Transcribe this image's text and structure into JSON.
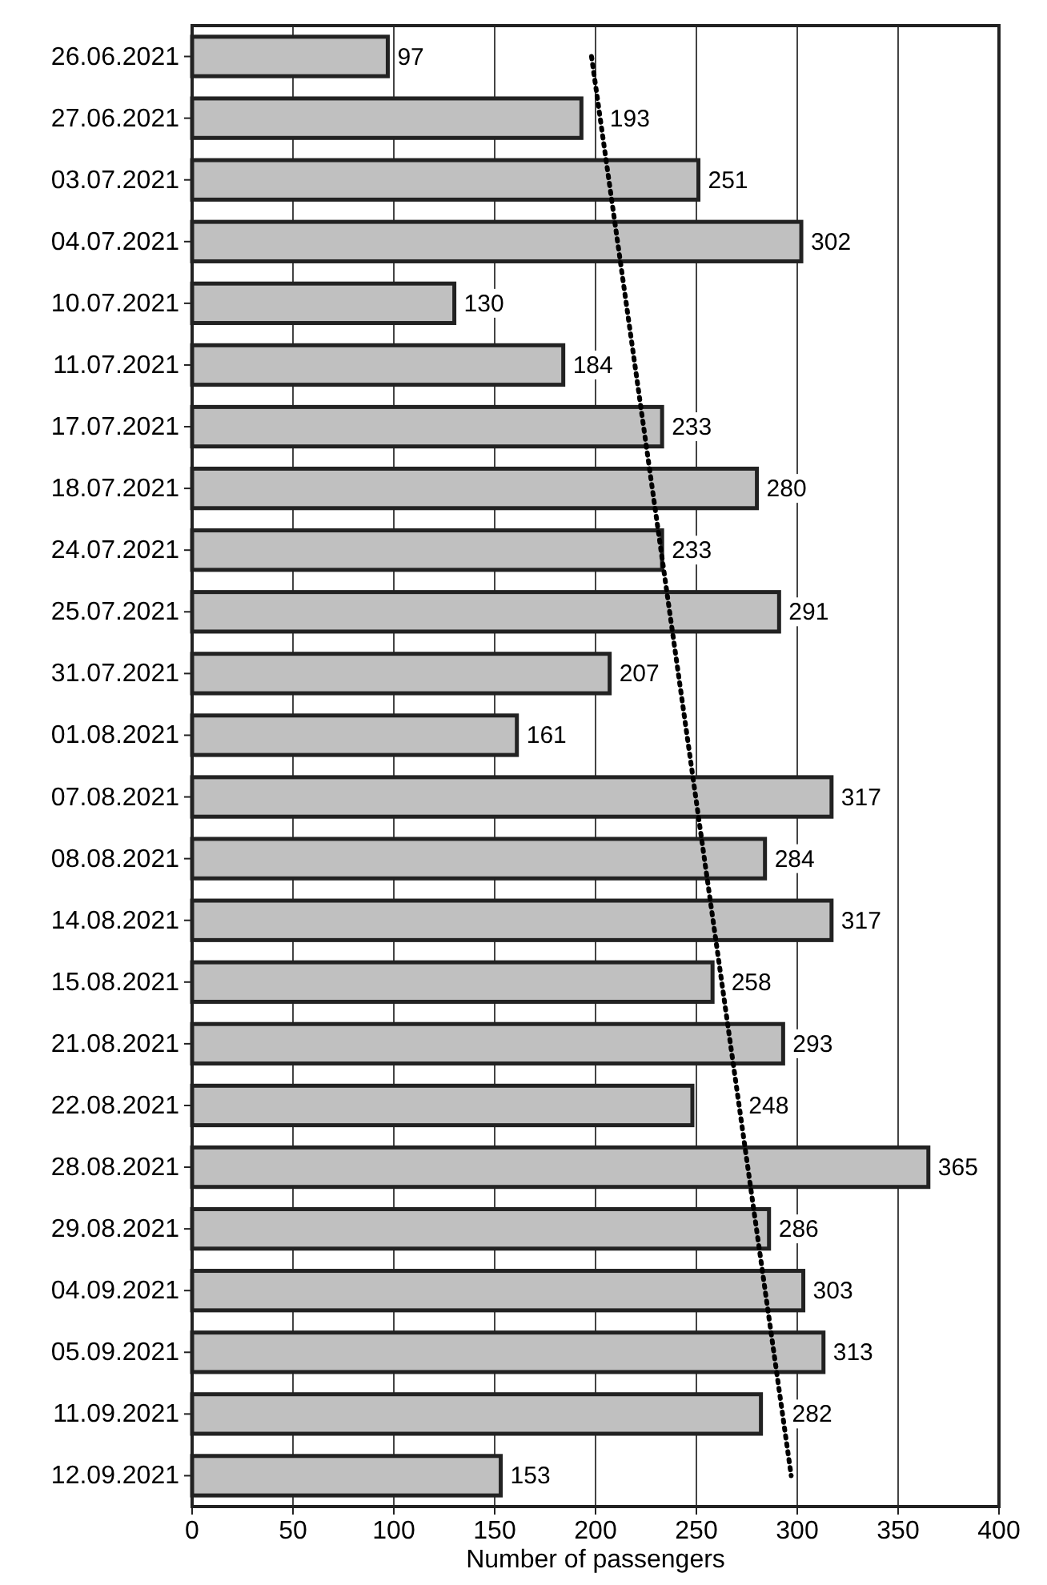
{
  "chart_data": {
    "type": "bar",
    "orientation": "horizontal",
    "xlabel": "Number of passengers",
    "categories": [
      "26.06.2021",
      "27.06.2021",
      "03.07.2021",
      "04.07.2021",
      "10.07.2021",
      "11.07.2021",
      "17.07.2021",
      "18.07.2021",
      "24.07.2021",
      "25.07.2021",
      "31.07.2021",
      "01.08.2021",
      "07.08.2021",
      "08.08.2021",
      "14.08.2021",
      "15.08.2021",
      "21.08.2021",
      "22.08.2021",
      "28.08.2021",
      "29.08.2021",
      "04.09.2021",
      "05.09.2021",
      "11.09.2021",
      "12.09.2021"
    ],
    "series": [
      {
        "color": "#c0c0c0",
        "values": [
          97,
          193,
          251,
          302,
          130,
          184,
          233,
          280,
          233,
          291,
          207,
          161,
          317,
          284,
          317,
          258,
          293,
          248,
          365,
          286,
          303,
          313,
          282,
          153
        ],
        "value_labels": [
          "97",
          "193",
          "251",
          "302",
          "130",
          "184",
          "233",
          "280",
          "233",
          "291",
          "207",
          "161",
          "317",
          "284",
          "317",
          "258",
          "293",
          "248",
          "365",
          "286",
          "303",
          "313",
          "282",
          "153"
        ]
      },
      {
        "type": "line",
        "color": "#000000",
        "line_style": "dotted",
        "x": [
          "26.06.2021",
          "12.09.2021"
        ],
        "values": [
          198,
          297
        ]
      }
    ],
    "xlim": [
      0,
      400
    ],
    "xticks": [
      0,
      50,
      100,
      150,
      200,
      250,
      300,
      350,
      400
    ],
    "grid": "x"
  }
}
